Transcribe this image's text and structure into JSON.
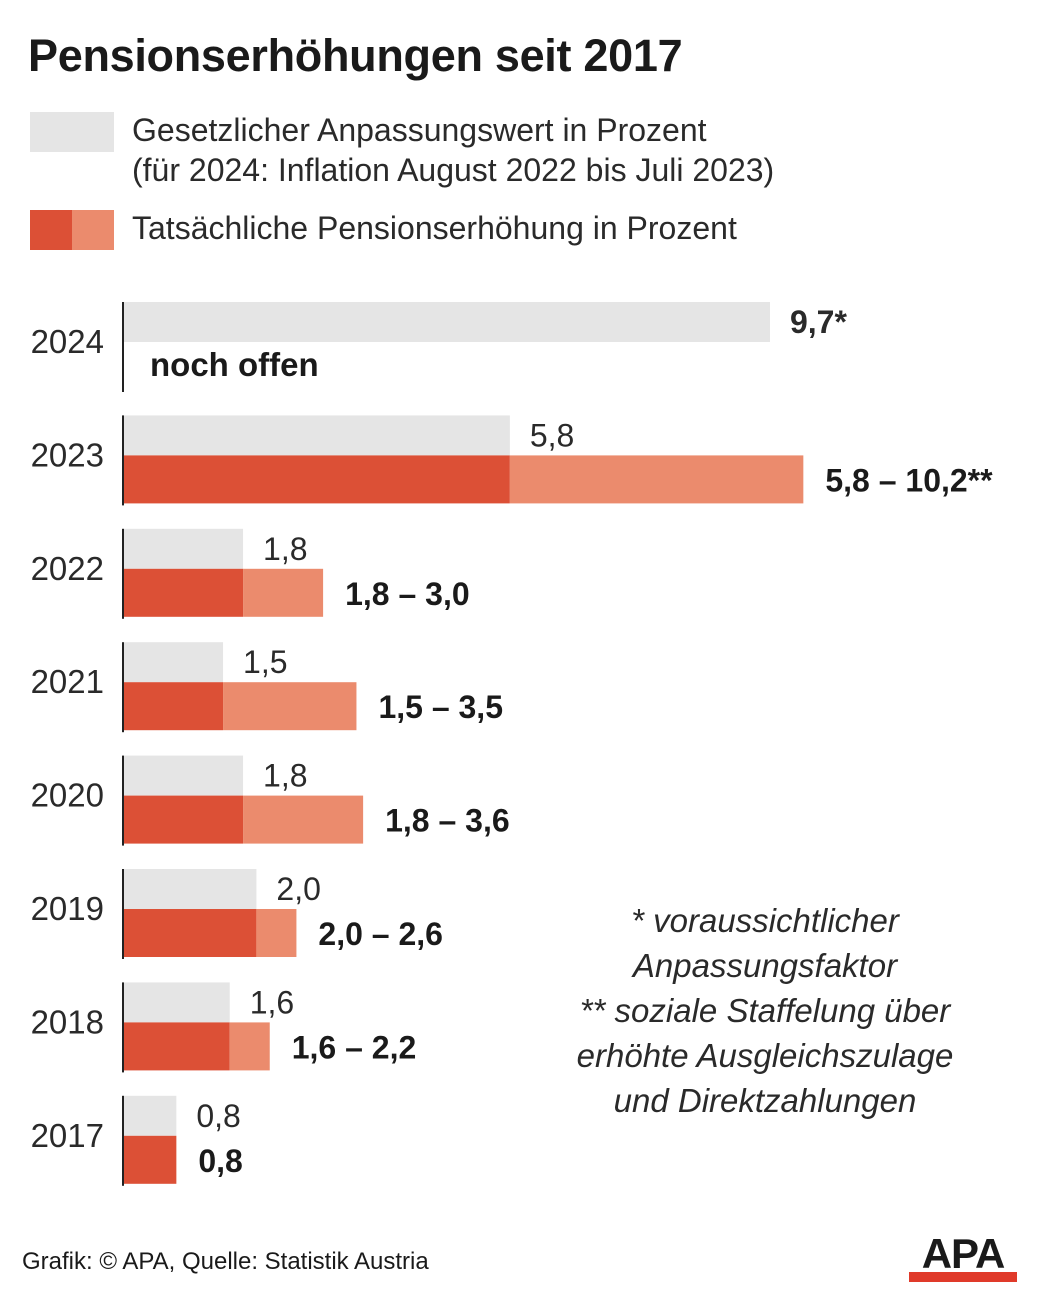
{
  "chart_data": {
    "type": "bar",
    "title": "Pensionserhöhungen seit 2017",
    "legend": [
      {
        "label_lines": [
          "Gesetzlicher Anpassungswert in Prozent",
          "(für 2024: Inflation August 2022 bis Juli 2023)"
        ],
        "color": "#e5e5e5"
      },
      {
        "label_lines": [
          "Tatsächliche Pensionserhöhung in Prozent"
        ],
        "colors": [
          "#dc5036",
          "#eb8b6d"
        ]
      }
    ],
    "categories": [
      "2024",
      "2023",
      "2022",
      "2021",
      "2020",
      "2019",
      "2018",
      "2017"
    ],
    "legal_values": [
      9.7,
      5.8,
      1.8,
      1.5,
      1.8,
      2.0,
      1.6,
      0.8
    ],
    "legal_labels": [
      "9,7*",
      "5,8",
      "1,8",
      "1,5",
      "1,8",
      "2,0",
      "1,6",
      "0,8"
    ],
    "actual_min": [
      null,
      5.8,
      1.8,
      1.5,
      1.8,
      2.0,
      1.6,
      0.8
    ],
    "actual_max": [
      null,
      10.2,
      3.0,
      3.5,
      3.6,
      2.6,
      2.2,
      0.8
    ],
    "actual_labels": [
      "noch offen",
      "5,8 – 10,2**",
      "1,8 – 3,0",
      "1,5 – 3,5",
      "1,8 – 3,6",
      "2,0 – 2,6",
      "1,6 – 2,2",
      "0,8"
    ],
    "xlim": [
      0,
      10.2
    ],
    "colors": {
      "legal": "#e5e5e5",
      "actual_min": "#dc5036",
      "actual_range": "#eb8b6d",
      "axis": "#222222"
    }
  },
  "footnotes": [
    "* voraussichtlicher",
    "Anpassungsfaktor",
    "** soziale Staffelung über",
    "erhöhte Ausgleichszulage",
    "und Direktzahlungen"
  ],
  "source": "Grafik: © APA, Quelle: Statistik Austria",
  "logo_text": "APA"
}
